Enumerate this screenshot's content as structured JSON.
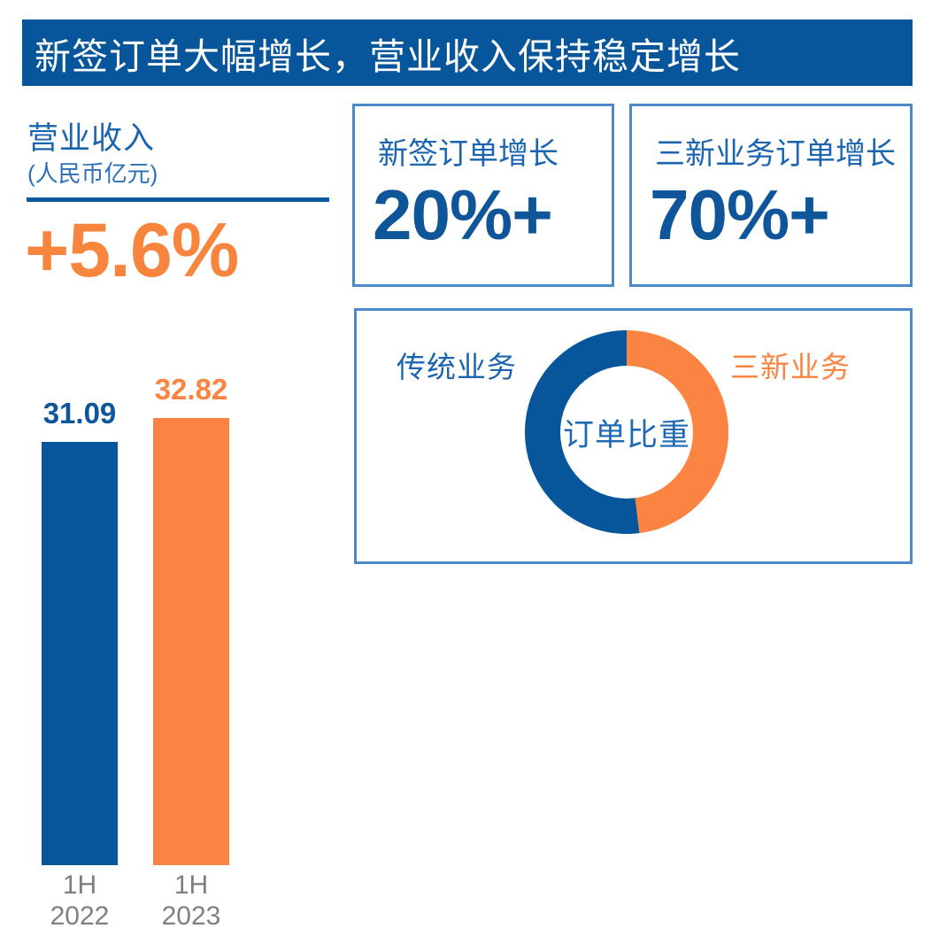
{
  "banner": {
    "title": "新签订单大幅增长，营业收入保持稳定增长"
  },
  "revenue_panel": {
    "title": "营业收入",
    "unit": "(人民币亿元)",
    "growth_value": "+5.6%"
  },
  "kpi_boxes": [
    {
      "label": "新签订单增长",
      "value": "20%+"
    },
    {
      "label": "三新业务订单增长",
      "value": "70%+"
    }
  ],
  "order_mix_panel": {
    "left_label": "传统业务",
    "right_label": "三新业务",
    "center_label": "订单比重"
  },
  "chart_data": [
    {
      "type": "bar",
      "title": "营业收入",
      "ylabel": "人民币亿元",
      "categories": [
        "1H\n2022",
        "1H\n2023"
      ],
      "values": [
        31.09,
        32.82
      ],
      "data_labels": [
        "31.09",
        "32.82"
      ],
      "bar_colors": [
        "#07569B",
        "#FB8442"
      ],
      "label_colors": [
        "#0E5599",
        "#FA8440"
      ],
      "ylim": [
        0,
        33
      ],
      "grid": false,
      "legend": "none"
    },
    {
      "type": "pie",
      "title": "订单比重",
      "donut": true,
      "labels": [
        "三新业务",
        "传统业务"
      ],
      "values": [
        48,
        52
      ],
      "colors": [
        "#FB8442",
        "#07569B"
      ],
      "start_angle": "12 o'clock, clockwise",
      "legend": "labels placed left (传统业务, blue) and right (三新业务, orange) of ring"
    }
  ],
  "colors": {
    "primary_blue": "#07569B",
    "accent_orange": "#FB8442",
    "title_blue": "#1B65B0",
    "number_blue": "#0E5599",
    "growth_orange": "#F8853E",
    "box_border_blue": "#4D89C8",
    "axis_gray": "#7F7F7F",
    "banner_text": "#FFFFFF",
    "background": "#FFFFFF"
  }
}
